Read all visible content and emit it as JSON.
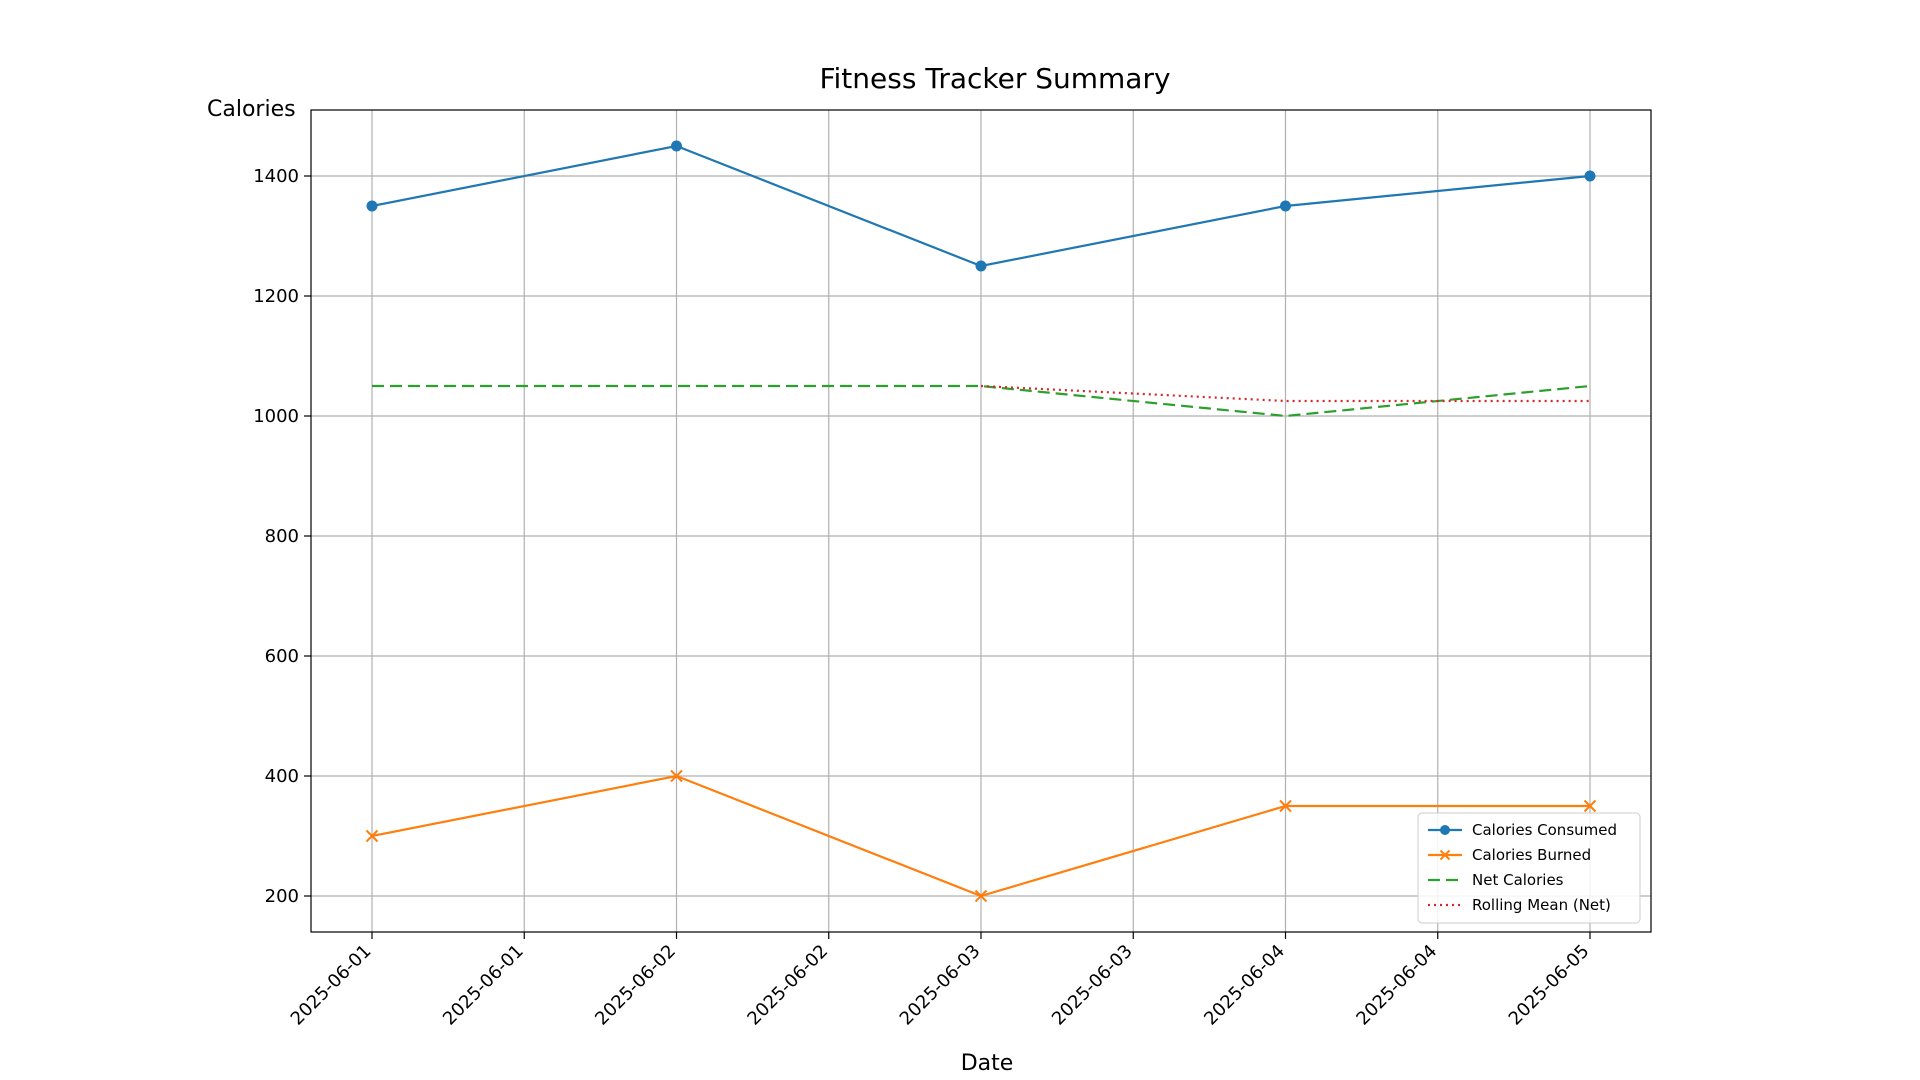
{
  "chart_data": {
    "type": "line",
    "title": "Fitness Tracker Summary",
    "xlabel": "Date",
    "ylabel": "Calories",
    "x": [
      "2025-06-01",
      "2025-06-02",
      "2025-06-03",
      "2025-06-04",
      "2025-06-05"
    ],
    "x_tick_labels": [
      "2025-06-01",
      "2025-06-01",
      "2025-06-02",
      "2025-06-02",
      "2025-06-03",
      "2025-06-03",
      "2025-06-04",
      "2025-06-04",
      "2025-06-05"
    ],
    "y_ticks": [
      200,
      400,
      600,
      800,
      1000,
      1200,
      1400
    ],
    "ylim": [
      140,
      1510
    ],
    "grid": true,
    "legend_position": "lower-right",
    "series": [
      {
        "name": "Calories Consumed",
        "values": [
          1350,
          1450,
          1250,
          1350,
          1400
        ],
        "color": "#1f77b4",
        "line_style": "solid",
        "marker": "circle"
      },
      {
        "name": "Calories Burned",
        "values": [
          300,
          400,
          200,
          350,
          350
        ],
        "color": "#ff7f0e",
        "line_style": "solid",
        "marker": "x"
      },
      {
        "name": "Net Calories",
        "values": [
          1050,
          1050,
          1050,
          1000,
          1050
        ],
        "color": "#2ca02c",
        "line_style": "dashed",
        "marker": "none"
      },
      {
        "name": "Rolling Mean (Net)",
        "values": [
          null,
          null,
          1050,
          1025,
          1025
        ],
        "color": "#d62728",
        "line_style": "dotted",
        "marker": "none"
      }
    ]
  }
}
